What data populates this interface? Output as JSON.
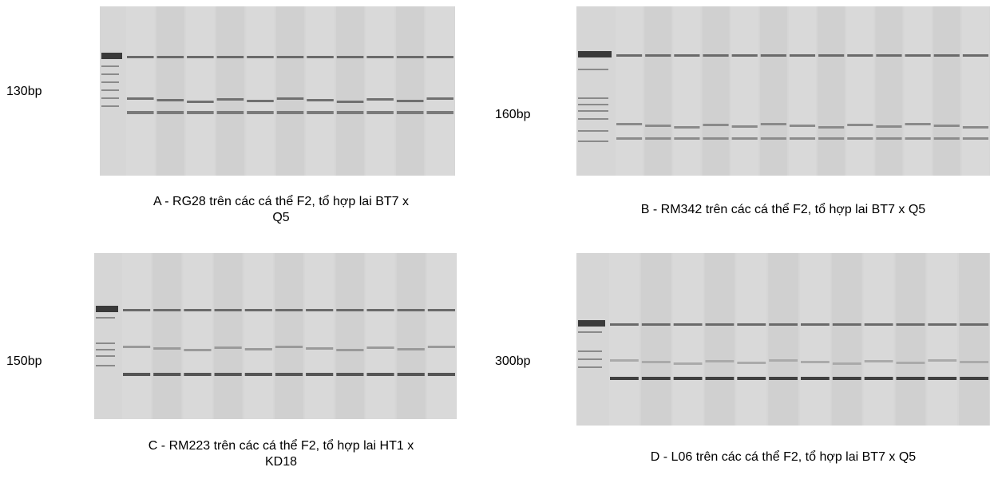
{
  "panels": [
    {
      "size_label": "130bp",
      "caption": [
        "A - RG28 trên các cá thể F2, tổ hợp lai BT7 x",
        "Q5"
      ]
    },
    {
      "size_label": "160bp",
      "caption": [
        "B - RM342 trên các cá thể F2, tổ hợp lai BT7 x Q5"
      ]
    },
    {
      "size_label": "150bp",
      "caption": [
        "C - RM223 trên các cá thể F2, tổ hợp lai HT1 x",
        "KD18"
      ]
    },
    {
      "size_label": "300bp",
      "caption": [
        "D - L06 trên các cá thể F2, tổ hợp lai BT7 x Q5"
      ]
    }
  ]
}
